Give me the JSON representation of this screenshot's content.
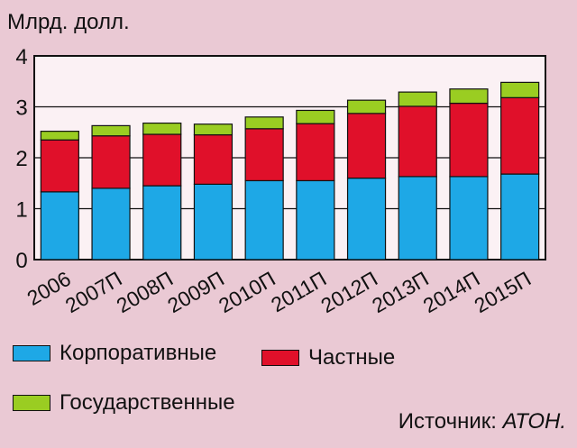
{
  "chart_data": {
    "type": "bar",
    "stacked": true,
    "ylabel": "Млрд. долл.",
    "ylim": [
      0,
      4
    ],
    "yticks": [
      0,
      1,
      2,
      3,
      4
    ],
    "grid": true,
    "categories": [
      "2006",
      "2007П",
      "2008П",
      "2009П",
      "2010П",
      "2011П",
      "2012П",
      "2013П",
      "2014П",
      "2015П"
    ],
    "series": [
      {
        "name": "Корпоративные",
        "color": "#1ea8e6",
        "values": [
          1.33,
          1.4,
          1.45,
          1.48,
          1.55,
          1.55,
          1.6,
          1.63,
          1.63,
          1.68
        ]
      },
      {
        "name": "Частные",
        "color": "#e0102a",
        "values": [
          1.02,
          1.03,
          1.01,
          0.97,
          1.02,
          1.12,
          1.27,
          1.38,
          1.44,
          1.5
        ]
      },
      {
        "name": "Государственные",
        "color": "#9acd22",
        "values": [
          0.17,
          0.2,
          0.22,
          0.21,
          0.23,
          0.26,
          0.26,
          0.28,
          0.28,
          0.3
        ]
      }
    ],
    "legend_placement": "bottom"
  },
  "source": {
    "label": "Источник:",
    "name": "АТОН."
  }
}
